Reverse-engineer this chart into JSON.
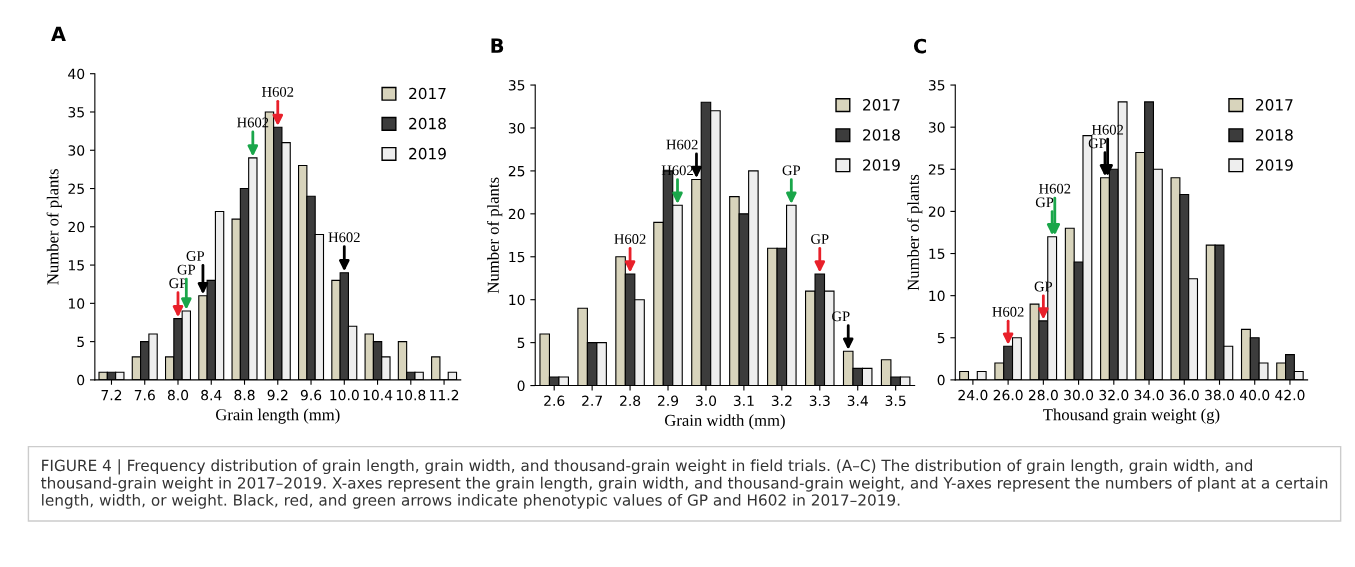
{
  "chart_data": [
    {
      "type": "bar",
      "title": "A",
      "xlabel": "Grain length (mm)",
      "ylabel": "Number of plants",
      "categories": [
        "7.2",
        "7.6",
        "8.0",
        "8.4",
        "8.8",
        "9.2",
        "9.6",
        "10.0",
        "10.4",
        "10.8",
        "11.2"
      ],
      "series": [
        {
          "name": "2017",
          "color": "#d8d4bc",
          "values": [
            1,
            3,
            3,
            11,
            21,
            35,
            28,
            13,
            6,
            5,
            3
          ]
        },
        {
          "name": "2018",
          "color": "#3c3c3c",
          "values": [
            1,
            5,
            8,
            13,
            25,
            33,
            24,
            14,
            5,
            1,
            0
          ]
        },
        {
          "name": "2019",
          "color": "#eeeeee",
          "values": [
            1,
            6,
            9,
            22,
            29,
            31,
            19,
            7,
            3,
            1,
            1
          ]
        }
      ],
      "ylim": [
        0,
        40
      ],
      "yticks": [
        0,
        5,
        10,
        15,
        20,
        25,
        30,
        35,
        40
      ],
      "legend": "top right",
      "annotations": [
        {
          "text": "GP",
          "x": "8.0",
          "y": 8
        },
        {
          "text": "GP",
          "x": "8.0",
          "y": 9
        },
        {
          "text": "GP",
          "x": "8.4",
          "y": 11
        },
        {
          "text": "H602",
          "x": "8.8",
          "y": 29
        },
        {
          "text": "H602",
          "x": "9.2",
          "y": 33
        },
        {
          "text": "H602",
          "x": "10.0",
          "y": 14
        },
        "FIGURE 4 | Frequency distribution of grain length, grain width, and thousand-grain weight in field trials. (A–C) The distribution of grain length, grain width, and thousand-grain weight in 2017–2019. X-axes represent the grain length, grain width, and thousand-grain weight, and Y-axes represent the numbers of plant at a certain length, width, or weight. Black, red, and green arrows indicate phenotypic values of GP and H602 in 2017–2019."
      ]
    },
    {
      "type": "bar",
      "title": "B",
      "xlabel": "Grain width (mm)",
      "ylabel": "Number of plants",
      "categories": [
        "2.6",
        "2.7",
        "2.8",
        "2.9",
        "3.0",
        "3.1",
        "3.2",
        "3.3",
        "3.4",
        "3.5"
      ],
      "series": [
        {
          "name": "2017",
          "color": "#d8d4bc",
          "values": [
            6,
            9,
            15,
            19,
            24,
            22,
            16,
            11,
            4,
            3
          ]
        },
        {
          "name": "2018",
          "color": "#3c3c3c",
          "values": [
            1,
            5,
            13,
            25,
            33,
            20,
            16,
            13,
            2,
            1
          ]
        },
        {
          "name": "2019",
          "color": "#eeeeee",
          "values": [
            1,
            5,
            10,
            21,
            32,
            25,
            21,
            11,
            2,
            1
          ]
        }
      ],
      "ylim": [
        0,
        35
      ],
      "yticks": [
        0,
        5,
        10,
        15,
        20,
        25,
        30,
        35
      ],
      "legend": "top right",
      "annotations": [
        {
          "text": "H602",
          "x": "2.8",
          "y": 13
        },
        {
          "text": "H602",
          "x": "2.9",
          "y": 21
        },
        {
          "text": "H602",
          "x": "3.0",
          "y": 24
        },
        {
          "text": "GP",
          "x": "3.2",
          "y": 21
        },
        {
          "text": "GP",
          "x": "3.3",
          "y": 13
        },
        {
          "text": "GP",
          "x": "3.4",
          "y": 4
        }
      ]
    },
    {
      "type": "bar",
      "title": "C",
      "xlabel": "Thousand grain weight (g)",
      "ylabel": "Number of plants",
      "categories": [
        "24.0",
        "26.0",
        "28.0",
        "30.0",
        "32.0",
        "34.0",
        "36.0",
        "38.0",
        "40.0",
        "42.0"
      ],
      "series": [
        {
          "name": "2017",
          "color": "#d8d4bc",
          "values": [
            1,
            2,
            9,
            18,
            24,
            27,
            24,
            16,
            6,
            2
          ]
        },
        {
          "name": "2018",
          "color": "#3c3c3c",
          "values": [
            0,
            4,
            7,
            14,
            25,
            33,
            22,
            16,
            5,
            3
          ]
        },
        {
          "name": "2019",
          "color": "#eeeeee",
          "values": [
            1,
            5,
            17,
            29,
            33,
            25,
            12,
            4,
            2,
            1
          ]
        }
      ],
      "ylim": [
        0,
        35
      ],
      "yticks": [
        0,
        5,
        10,
        15,
        20,
        25,
        30,
        35
      ],
      "legend": "top right",
      "annotations": [
        {
          "text": "H602",
          "x": "26.0",
          "y": 4
        },
        {
          "text": "GP",
          "x": "28.0",
          "y": 7
        },
        {
          "text": "GP",
          "x": "28.0",
          "y": 17
        },
        {
          "text": "H602",
          "x": "28.0",
          "y": 17
        },
        {
          "text": "GP",
          "x": "32.0",
          "y": 24
        },
        {
          "text": "H602",
          "x": "32.0",
          "y": 24
        }
      ]
    }
  ]
}
